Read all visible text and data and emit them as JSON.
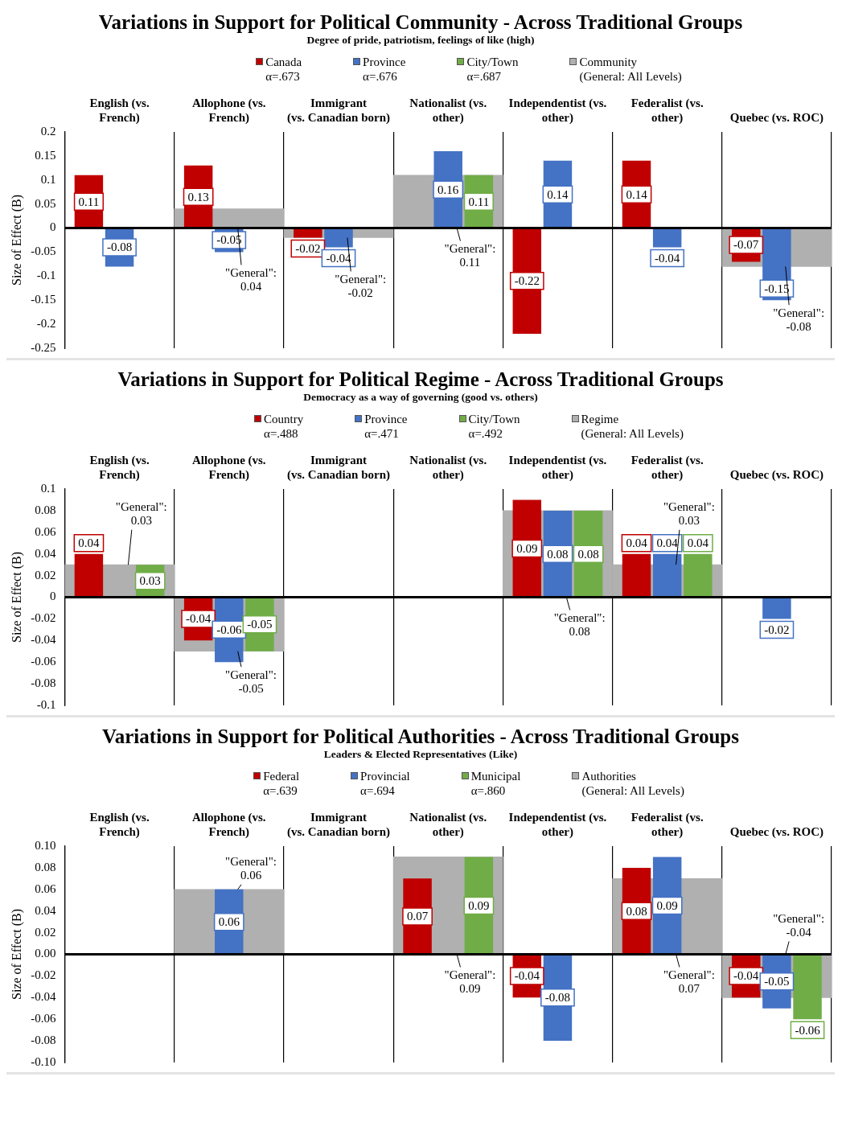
{
  "chart_data": [
    {
      "type": "bar",
      "title": "Variations in Support for Political Community - Across Traditional Groups",
      "subtitle": "Degree of pride, patriotism, feelings of like (high)",
      "ylabel": "Size of Effect (B)",
      "legend": "top",
      "grid": "x",
      "data_labels": true,
      "categories": [
        "English (vs. French)",
        "Allophone (vs. French)",
        "Immigrant (vs. Canadian born)",
        "Nationalist (vs. other)",
        "Independentist (vs. other)",
        "Federalist (vs. other)",
        "Quebec (vs. ROC)"
      ],
      "ylim": [
        -0.25,
        0.2
      ],
      "yticks": [
        -0.25,
        -0.2,
        -0.15,
        -0.1,
        -0.05,
        0,
        0.05,
        0.1,
        0.15,
        0.2
      ],
      "series": [
        {
          "name": "Canada\nα=.673",
          "color": "#c00000",
          "values": [
            0.11,
            0.13,
            -0.02,
            null,
            -0.22,
            0.14,
            -0.07
          ]
        },
        {
          "name": "Province\nα=.676",
          "color": "#4472c4",
          "values": [
            -0.08,
            -0.05,
            -0.04,
            0.16,
            0.14,
            -0.04,
            -0.15
          ]
        },
        {
          "name": "City/Town\nα=.687",
          "color": "#70ad47",
          "values": [
            null,
            null,
            null,
            0.11,
            null,
            null,
            null
          ]
        },
        {
          "name": "Community\n(General: All Levels)",
          "color": "#b0b0b0",
          "values": [
            null,
            0.04,
            -0.02,
            0.11,
            null,
            null,
            -0.08
          ],
          "value_labels": [
            null,
            "\"General\": 0.04",
            "\"General\": -0.02",
            "\"General\": 0.11",
            null,
            null,
            "\"General\": -0.08"
          ]
        }
      ]
    },
    {
      "type": "bar",
      "title": "Variations in Support for Political Regime - Across Traditional Groups",
      "subtitle": "Democracy as a way of governing (good vs. others)",
      "ylabel": "Size of Effect (B)",
      "legend": "top",
      "grid": "x",
      "data_labels": true,
      "categories": [
        "English (vs. French)",
        "Allophone (vs. French)",
        "Immigrant (vs. Canadian born)",
        "Nationalist (vs. other)",
        "Independentist (vs. other)",
        "Federalist (vs. other)",
        "Quebec (vs. ROC)"
      ],
      "ylim": [
        -0.1,
        0.1
      ],
      "yticks": [
        -0.1,
        -0.08,
        -0.06,
        -0.04,
        -0.02,
        0,
        0.02,
        0.04,
        0.06,
        0.08,
        0.1
      ],
      "series": [
        {
          "name": "Country\nα=.488",
          "color": "#c00000",
          "values": [
            0.04,
            -0.04,
            null,
            null,
            0.09,
            0.04,
            null
          ]
        },
        {
          "name": "Province\nα=.471",
          "color": "#4472c4",
          "values": [
            null,
            -0.06,
            null,
            null,
            0.08,
            0.04,
            -0.02
          ]
        },
        {
          "name": "City/Town\nα=.492",
          "color": "#70ad47",
          "values": [
            0.03,
            -0.05,
            null,
            null,
            0.08,
            0.04,
            null
          ]
        },
        {
          "name": "Regime\n(General: All Levels)",
          "color": "#b0b0b0",
          "values": [
            0.03,
            -0.05,
            null,
            null,
            0.08,
            0.03,
            null
          ],
          "value_labels": [
            "\"General\": 0.03",
            "\"General\": -0.05",
            null,
            null,
            "\"General\": 0.08",
            "\"General\": 0.03",
            null
          ]
        }
      ]
    },
    {
      "type": "bar",
      "title": "Variations in Support for Political Authorities - Across Traditional Groups",
      "subtitle": "Leaders & Elected Representatives (Like)",
      "ylabel": "Size of Effect (B)",
      "legend": "top",
      "grid": "x",
      "data_labels": true,
      "categories": [
        "English (vs. French)",
        "Allophone (vs. French)",
        "Immigrant (vs. Canadian born)",
        "Nationalist (vs. other)",
        "Independentist (vs. other)",
        "Federalist (vs. other)",
        "Quebec (vs. ROC)"
      ],
      "ylim": [
        -0.1,
        0.1
      ],
      "yticks": [
        {
          "value": -0.1,
          "label": "-0.10"
        },
        {
          "value": -0.08,
          "label": "-0.08"
        },
        {
          "value": -0.06,
          "label": "-0.06"
        },
        {
          "value": -0.04,
          "label": "-0.04"
        },
        {
          "value": -0.02,
          "label": "-0.02"
        },
        {
          "value": 0,
          "label": "0.00"
        },
        {
          "value": 0.02,
          "label": "0.02"
        },
        {
          "value": 0.04,
          "label": "0.04"
        },
        {
          "value": 0.06,
          "label": "0.06"
        },
        {
          "value": 0.08,
          "label": "0.08"
        },
        {
          "value": 0.1,
          "label": "0.10"
        }
      ],
      "series": [
        {
          "name": "Federal\nα=.639",
          "color": "#c00000",
          "values": [
            null,
            null,
            null,
            0.07,
            -0.04,
            0.08,
            -0.04
          ]
        },
        {
          "name": "Provincial\nα=.694",
          "color": "#4472c4",
          "values": [
            null,
            0.06,
            null,
            null,
            -0.08,
            0.09,
            -0.05
          ]
        },
        {
          "name": "Municipal\nα=.860",
          "color": "#70ad47",
          "values": [
            null,
            null,
            null,
            0.09,
            null,
            null,
            -0.06
          ]
        },
        {
          "name": "Authorities\n(General: All Levels)",
          "color": "#b0b0b0",
          "values": [
            null,
            0.06,
            null,
            0.09,
            null,
            0.07,
            -0.04
          ],
          "value_labels": [
            null,
            "\"General\": 0.06",
            null,
            "\"General\": 0.09",
            null,
            "\"General\": 0.07",
            "\"General\": -0.04"
          ]
        }
      ]
    }
  ]
}
